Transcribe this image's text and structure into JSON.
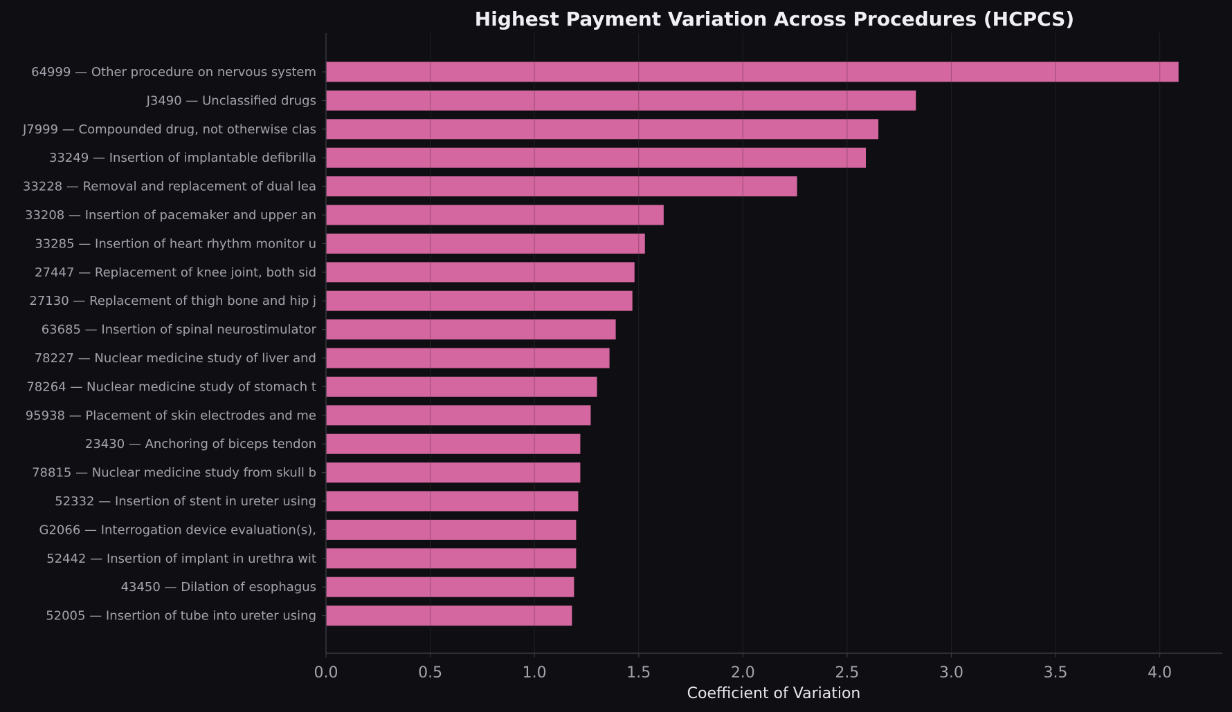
{
  "chart_data": {
    "type": "bar",
    "orientation": "horizontal",
    "title": "Highest Payment Variation Across Procedures (HCPCS)",
    "xlabel": "Coefficient of Variation",
    "ylabel": "",
    "xlim": [
      0,
      4.3
    ],
    "xticks": [
      "0.0",
      "0.5",
      "1.0",
      "1.5",
      "2.0",
      "2.5",
      "3.0",
      "3.5",
      "4.0"
    ],
    "grid": true,
    "categories": [
      "64999 — Other procedure on nervous system",
      "J3490 — Unclassified drugs",
      "J7999 — Compounded drug, not otherwise clas",
      "33249 — Insertion of implantable defibrilla",
      "33228 — Removal and replacement of dual lea",
      "33208 — Insertion of pacemaker and upper an",
      "33285 — Insertion of heart rhythm monitor u",
      "27447 — Replacement of knee joint, both sid",
      "27130 — Replacement of thigh bone and hip j",
      "63685 — Insertion of spinal neurostimulator",
      "78227 — Nuclear medicine study of liver and",
      "78264 — Nuclear medicine study of stomach t",
      "95938 — Placement of skin electrodes and me",
      "23430 — Anchoring of biceps tendon",
      "78815 — Nuclear medicine study from skull b",
      "52332 — Insertion of stent in ureter using ",
      "G2066 — Interrogation device evaluation(s),",
      "52442 — Insertion of implant in urethra wit",
      "43450 — Dilation of esophagus",
      "52005 — Insertion of tube into ureter using"
    ],
    "values": [
      4.09,
      2.83,
      2.65,
      2.59,
      2.26,
      1.62,
      1.53,
      1.48,
      1.47,
      1.39,
      1.36,
      1.3,
      1.27,
      1.22,
      1.22,
      1.21,
      1.2,
      1.2,
      1.19,
      1.18
    ],
    "colors": {
      "background": "#0f0f13",
      "bar": "#d4679f",
      "grid": "#2a2a30",
      "axis": "#3a3a42"
    }
  }
}
